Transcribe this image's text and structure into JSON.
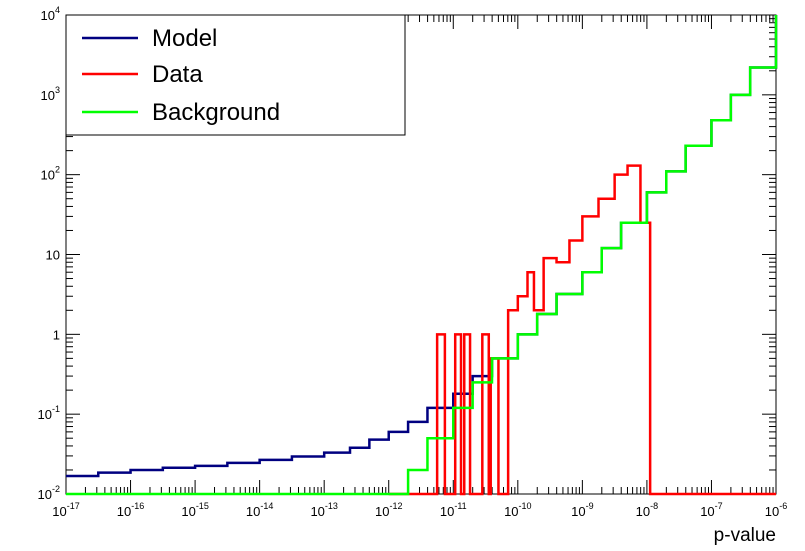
{
  "chart_data": {
    "type": "line",
    "title": "",
    "xlabel": "p-value",
    "ylabel": "",
    "x_log_range": [
      -17,
      -6
    ],
    "y_log_range": [
      -2,
      4
    ],
    "x_scale": "log",
    "y_scale": "log",
    "grid": false,
    "legend_position": "top-left",
    "x_tick_labels": [
      {
        "base": "10",
        "exp": "-17"
      },
      {
        "base": "10",
        "exp": "-16"
      },
      {
        "base": "10",
        "exp": "-15"
      },
      {
        "base": "10",
        "exp": "-14"
      },
      {
        "base": "10",
        "exp": "-13"
      },
      {
        "base": "10",
        "exp": "-12"
      },
      {
        "base": "10",
        "exp": "-11"
      },
      {
        "base": "10",
        "exp": "-10"
      },
      {
        "base": "10",
        "exp": "-9"
      },
      {
        "base": "10",
        "exp": "-8"
      },
      {
        "base": "10",
        "exp": "-7"
      },
      {
        "base": "10",
        "exp": "-6"
      }
    ],
    "y_tick_labels": [
      {
        "base": "10",
        "exp": "-2"
      },
      {
        "base": "10",
        "exp": "-1"
      },
      {
        "base": "1",
        "exp": ""
      },
      {
        "base": "10",
        "exp": ""
      },
      {
        "base": "10",
        "exp": "2"
      },
      {
        "base": "10",
        "exp": "3"
      },
      {
        "base": "10",
        "exp": "4"
      }
    ],
    "series": [
      {
        "name": "Model",
        "color": "#000080",
        "points": [
          [
            -17.0,
            0.0168
          ],
          [
            -16.5,
            0.0185
          ],
          [
            -16.0,
            0.02
          ],
          [
            -15.5,
            0.0213
          ],
          [
            -15.0,
            0.0225
          ],
          [
            -14.5,
            0.0245
          ],
          [
            -14.0,
            0.0268
          ],
          [
            -13.5,
            0.0295
          ],
          [
            -13.0,
            0.033
          ],
          [
            -12.6,
            0.038
          ],
          [
            -12.3,
            0.048
          ],
          [
            -12.0,
            0.06
          ],
          [
            -11.7,
            0.08
          ],
          [
            -11.4,
            0.12
          ],
          [
            -11.0,
            0.18
          ],
          [
            -10.7,
            0.3
          ],
          [
            -10.4,
            0.5
          ],
          [
            -10.0,
            1.0
          ],
          [
            -9.7,
            1.8
          ],
          [
            -9.4,
            3.2
          ],
          [
            -9.0,
            6.0
          ],
          [
            -8.7,
            12.0
          ],
          [
            -8.4,
            25.0
          ],
          [
            -8.0,
            60.0
          ],
          [
            -7.7,
            110.0
          ],
          [
            -7.4,
            230.0
          ],
          [
            -7.0,
            480.0
          ],
          [
            -6.7,
            1000.0
          ],
          [
            -6.4,
            2200.0
          ],
          [
            -6.0,
            10000
          ]
        ]
      },
      {
        "name": "Data",
        "color": "#ff0000",
        "bins": [
          [
            -12.0,
            0.01
          ],
          [
            -11.25,
            0.01
          ],
          [
            -11.25,
            1
          ],
          [
            -11.13,
            1
          ],
          [
            -11.13,
            0.01
          ],
          [
            -11.0,
            0.01
          ],
          [
            -10.97,
            0.01
          ],
          [
            -10.97,
            1
          ],
          [
            -10.88,
            1
          ],
          [
            -10.88,
            0.01
          ],
          [
            -10.83,
            0.01
          ],
          [
            -10.83,
            1
          ],
          [
            -10.74,
            1
          ],
          [
            -10.74,
            0.01
          ],
          [
            -10.55,
            0.01
          ],
          [
            -10.55,
            1
          ],
          [
            -10.45,
            1
          ],
          [
            -10.45,
            0.01
          ],
          [
            -10.42,
            0.01
          ],
          [
            -10.42,
            0.5
          ],
          [
            -10.3,
            0.5
          ],
          [
            -10.3,
            0.01
          ],
          [
            -10.15,
            0.01
          ],
          [
            -10.15,
            2
          ],
          [
            -10.0,
            2
          ],
          [
            -10.0,
            3
          ],
          [
            -9.85,
            3
          ],
          [
            -9.85,
            6
          ],
          [
            -9.75,
            6
          ],
          [
            -9.75,
            2
          ],
          [
            -9.6,
            2
          ],
          [
            -9.6,
            9
          ],
          [
            -9.4,
            9
          ],
          [
            -9.4,
            8
          ],
          [
            -9.2,
            8
          ],
          [
            -9.2,
            15
          ],
          [
            -9.0,
            15
          ],
          [
            -9.0,
            30
          ],
          [
            -8.75,
            30
          ],
          [
            -8.75,
            50
          ],
          [
            -8.5,
            50
          ],
          [
            -8.5,
            100
          ],
          [
            -8.3,
            100
          ],
          [
            -8.3,
            130
          ],
          [
            -8.1,
            130
          ],
          [
            -8.1,
            25
          ],
          [
            -7.95,
            25
          ],
          [
            -7.95,
            0.01
          ],
          [
            -6.0,
            0.01
          ]
        ]
      },
      {
        "name": "Background",
        "color": "#00ff00",
        "points": [
          [
            -17.0,
            0.01
          ],
          [
            -12.0,
            0.01
          ],
          [
            -11.7,
            0.02
          ],
          [
            -11.4,
            0.05
          ],
          [
            -11.0,
            0.12
          ],
          [
            -10.7,
            0.25
          ],
          [
            -10.4,
            0.5
          ],
          [
            -10.0,
            1.0
          ],
          [
            -9.7,
            1.8
          ],
          [
            -9.4,
            3.2
          ],
          [
            -9.0,
            6.0
          ],
          [
            -8.7,
            12.0
          ],
          [
            -8.4,
            25.0
          ],
          [
            -8.0,
            60.0
          ],
          [
            -7.7,
            110.0
          ],
          [
            -7.4,
            230.0
          ],
          [
            -7.0,
            480.0
          ],
          [
            -6.7,
            1000.0
          ],
          [
            -6.4,
            2200.0
          ],
          [
            -6.0,
            10000
          ]
        ]
      }
    ]
  }
}
